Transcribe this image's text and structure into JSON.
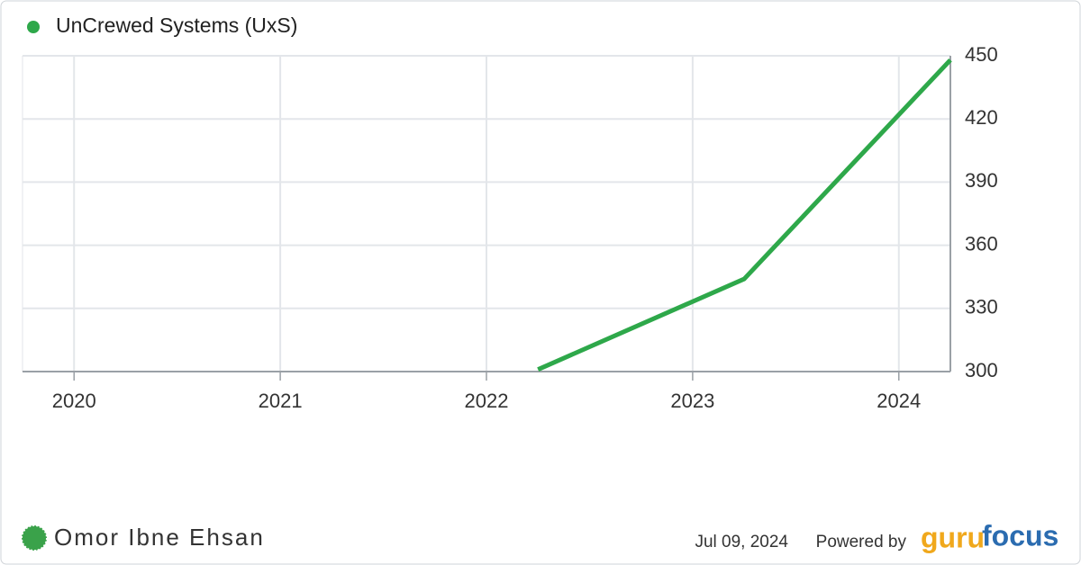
{
  "chart_data": {
    "type": "line",
    "series": [
      {
        "name": "UnCrewed Systems (UxS)",
        "color": "#2ea84a",
        "x": [
          2022.25,
          2023.25,
          2024.25
        ],
        "values": [
          301,
          344,
          448
        ]
      }
    ],
    "xlim": [
      2019.75,
      2024.25
    ],
    "xticks": [
      2020,
      2021,
      2022,
      2023,
      2024
    ],
    "ylim": [
      300,
      450
    ],
    "yticks": [
      300,
      330,
      360,
      390,
      420,
      450
    ],
    "grid": true,
    "legend": "top-left"
  },
  "footer": {
    "author": "Omor Ibne Ehsan",
    "date": "Jul 09, 2024",
    "powered_by": "Powered by",
    "logo_part1": "guru",
    "logo_part2": "focus"
  }
}
